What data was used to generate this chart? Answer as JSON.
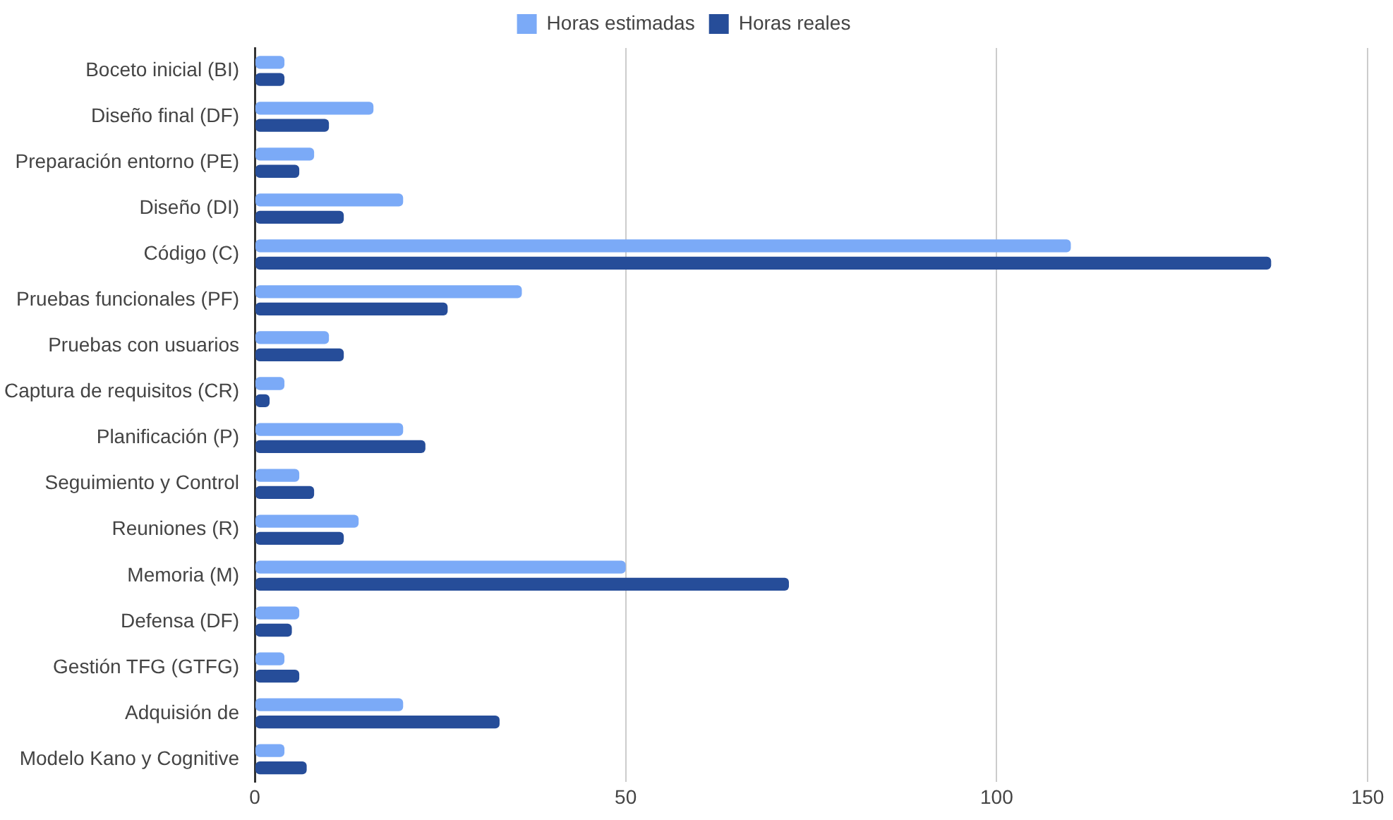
{
  "chart_data": {
    "type": "bar",
    "orientation": "horizontal",
    "categories": [
      "Boceto inicial (BI)",
      "Diseño final (DF)",
      "Preparación entorno (PE)",
      "Diseño (DI)",
      "Código (C)",
      "Pruebas funcionales (PF)",
      "Pruebas con usuarios",
      "Captura de requisitos (CR)",
      "Planificación (P)",
      "Seguimiento y Control",
      "Reuniones (R)",
      "Memoria (M)",
      "Defensa (DF)",
      "Gestión TFG (GTFG)",
      "Adquisión de",
      "Modelo Kano y Cognitive"
    ],
    "series": [
      {
        "name": "Horas estimadas",
        "color": "#7baaf7",
        "values": [
          4,
          16,
          8,
          20,
          110,
          36,
          10,
          4,
          20,
          6,
          14,
          50,
          6,
          4,
          20,
          4
        ]
      },
      {
        "name": "Horas reales",
        "color": "#264d99",
        "values": [
          4,
          10,
          6,
          12,
          137,
          26,
          12,
          2,
          23,
          8,
          12,
          72,
          5,
          6,
          33,
          7
        ]
      }
    ],
    "xlim": [
      0,
      150
    ],
    "xticks": [
      0,
      50,
      100,
      150
    ],
    "grid": "x",
    "legend": "top"
  }
}
